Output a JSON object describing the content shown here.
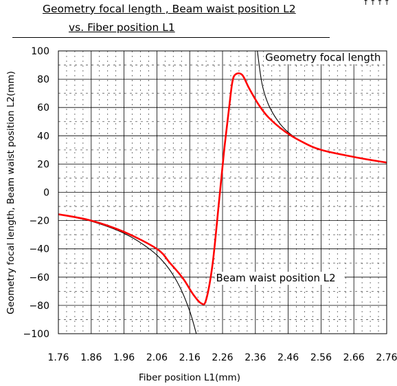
{
  "chart_data": {
    "type": "line",
    "title": "Geometry focal length , Beam waist position L2",
    "subtitle": "vs. Fiber position L1",
    "corner_mark": "↑↑↑↑",
    "xlabel": "Fiber position L1(mm)",
    "ylabel": "Geometry focal length, Beam waist position L2(mm)",
    "xlim": [
      1.76,
      2.76
    ],
    "ylim": [
      -100,
      100
    ],
    "xticks": [
      "1.76",
      "1.86",
      "1.96",
      "2.06",
      "2.16",
      "2.26",
      "2.36",
      "2.46",
      "2.56",
      "2.66",
      "2.76"
    ],
    "yticks": [
      "100",
      "80",
      "60",
      "40",
      "20",
      "0",
      "−20",
      "−40",
      "−60",
      "−80",
      "−100"
    ],
    "grid": true,
    "annotations": [
      {
        "text": "Geometry focal length",
        "x": 2.39,
        "y": 93
      },
      {
        "text": "Beam waist position L2",
        "x": 2.24,
        "y": -63
      }
    ],
    "series": [
      {
        "label": "Geometry focal length",
        "color": "#000000",
        "x": [
          1.76,
          1.86,
          1.96,
          2.04,
          2.09,
          2.13,
          2.16,
          2.18,
          2.366,
          2.38,
          2.4,
          2.43,
          2.46,
          2.5,
          2.56,
          2.66,
          2.76
        ],
        "y": [
          -15.5,
          -20.5,
          -29,
          -40.5,
          -52,
          -67,
          -84,
          -100,
          100,
          77,
          62,
          50,
          42.5,
          36,
          30,
          25,
          21
        ]
      },
      {
        "label": "Beam waist position L2",
        "color": "#ff0000",
        "x": [
          1.76,
          1.86,
          1.96,
          2.06,
          2.1,
          2.14,
          2.17,
          2.195,
          2.21,
          2.23,
          2.25,
          2.265,
          2.28,
          2.29,
          2.3,
          2.32,
          2.34,
          2.37,
          2.4,
          2.45,
          2.5,
          2.56,
          2.66,
          2.76
        ],
        "y": [
          -15.5,
          -20,
          -28,
          -40,
          -50,
          -61,
          -72,
          -78.5,
          -76,
          -50,
          -5,
          30,
          60,
          78,
          83.5,
          83,
          74,
          62,
          53,
          43,
          36,
          30,
          25,
          21
        ]
      }
    ]
  }
}
